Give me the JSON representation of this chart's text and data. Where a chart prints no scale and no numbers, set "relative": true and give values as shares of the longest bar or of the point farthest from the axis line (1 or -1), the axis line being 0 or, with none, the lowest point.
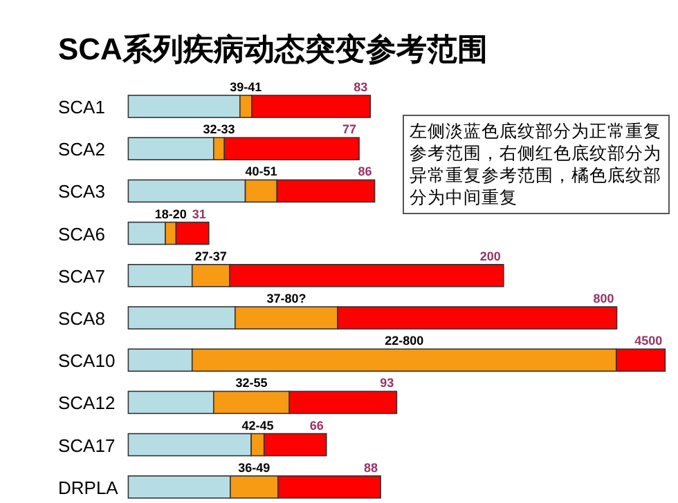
{
  "chart_data": {
    "type": "bar",
    "orientation": "horizontal",
    "stacked": true,
    "relative": true,
    "title": "SCA系列疾病动态突变参考范围",
    "categories": [
      "SCA1",
      "SCA2",
      "SCA3",
      "SCA6",
      "SCA7",
      "SCA8",
      "SCA10",
      "SCA12",
      "SCA17",
      "DRPLA"
    ],
    "series": [
      {
        "color": "#b7dde4",
        "values": [
          0.208,
          0.159,
          0.218,
          0.069,
          0.119,
          0.199,
          0.119,
          0.159,
          0.229,
          0.19
        ]
      },
      {
        "color": "#f79a14",
        "values": [
          0.022,
          0.02,
          0.059,
          0.02,
          0.07,
          0.191,
          0.79,
          0.141,
          0.024,
          0.089
        ]
      },
      {
        "color": "#fe0000",
        "values": [
          0.221,
          0.251,
          0.182,
          0.061,
          0.51,
          0.52,
          0.091,
          0.2,
          0.116,
          0.191
        ]
      }
    ],
    "annotations": [
      "左侧淡蓝色底纹部分为正常重复参考范围，右侧红色底纹部分为异常重复参考范围，橘色底纹部分为中间重复",
      {
        "text": "39-41",
        "x": 0.23,
        "y": "SCA1"
      },
      {
        "text": "83",
        "x": 0.451,
        "y": "SCA1"
      },
      {
        "text": "32-33",
        "x": 0.179,
        "y": "SCA2"
      },
      {
        "text": "77",
        "x": 0.43,
        "y": "SCA2"
      },
      {
        "text": "40-51",
        "x": 0.277,
        "y": "SCA3"
      },
      {
        "text": "86",
        "x": 0.459,
        "y": "SCA3"
      },
      {
        "text": "18-20",
        "x": 0.089,
        "y": "SCA6"
      },
      {
        "text": "31",
        "x": 0.15,
        "y": "SCA6"
      },
      {
        "text": "27-37",
        "x": 0.189,
        "y": "SCA7"
      },
      {
        "text": "200",
        "x": 0.699,
        "y": "SCA7"
      },
      {
        "text": "37-80?",
        "x": 0.39,
        "y": "SCA8"
      },
      {
        "text": "800",
        "x": 0.91,
        "y": "SCA8"
      },
      "22-800",
      {
        "text": "4500",
        "x": 1.0,
        "y": "SCA10"
      },
      {
        "text": "32-55",
        "x": 0.3,
        "y": "SCA12"
      },
      {
        "text": "93",
        "x": 0.5,
        "y": "SCA12"
      },
      {
        "text": "42-45",
        "x": 0.253,
        "y": "SCA17"
      },
      {
        "text": "66",
        "x": 0.369,
        "y": "SCA17"
      },
      {
        "text": "36-49",
        "x": 0.279,
        "y": "DRPLA"
      },
      {
        "text": "88",
        "x": 0.47,
        "y": "DRPLA"
      }
    ]
  }
}
